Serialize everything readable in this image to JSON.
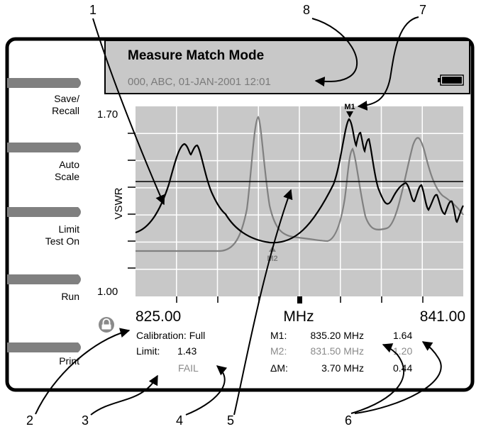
{
  "header": {
    "title": "Measure Match Mode",
    "subtitle": "000, ABC, 01-JAN-2001 12:01"
  },
  "softkeys": [
    {
      "lines": [
        "Save/",
        "Recall"
      ]
    },
    {
      "lines": [
        "Auto",
        "Scale"
      ]
    },
    {
      "lines": [
        "Limit",
        "Test On"
      ]
    },
    {
      "lines": [
        "Run"
      ]
    },
    {
      "lines": [
        "Print"
      ]
    }
  ],
  "plot": {
    "y_axis_label": "VSWR",
    "y_top_label": "1.70",
    "y_bottom_label": "1.00",
    "x_start_label": "825.00",
    "x_unit_label": "MHz",
    "x_end_label": "841.00",
    "limit_value": 1.43,
    "m1_label": "M1",
    "m2_label": "M2"
  },
  "status": {
    "calibration": "Calibration: Full",
    "limit_label": "Limit:",
    "limit_value": "1.43",
    "result": "FAIL"
  },
  "markers": [
    {
      "name": "M1:",
      "freq": "835.20 MHz",
      "value": "1.64"
    },
    {
      "name": "M2:",
      "freq": "831.50 MHz",
      "value": "1.20"
    },
    {
      "name": "ΔM:",
      "freq": "3.70 MHz",
      "value": "0.44"
    }
  ],
  "callouts": [
    "1",
    "2",
    "3",
    "4",
    "5",
    "6",
    "7",
    "8"
  ],
  "colors": {
    "frame": "#000000",
    "header_bg": "#c8c8c8",
    "plot_bg": "#c8c8c8",
    "grid": "#ffffff",
    "trace_dark": "#000000",
    "trace_gray": "#808080",
    "dim_text": "#8a8a8a"
  }
}
